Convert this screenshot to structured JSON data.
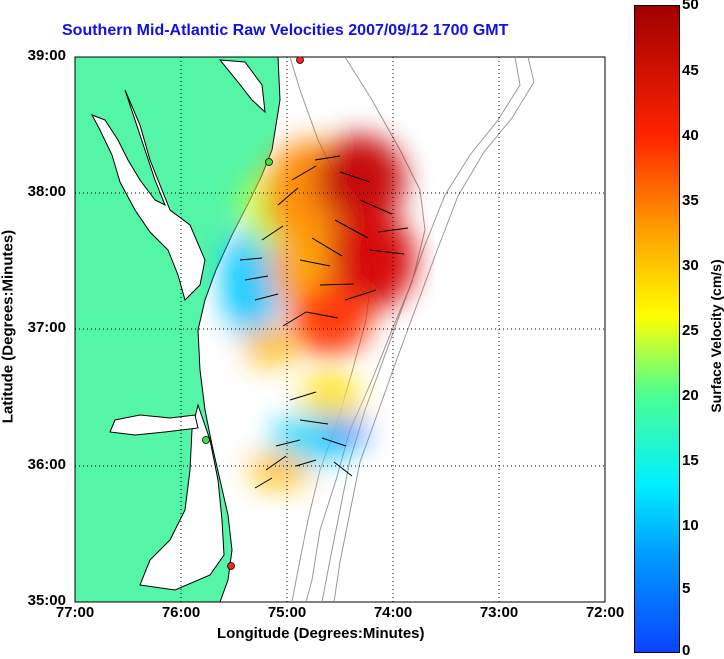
{
  "title": "Southern Mid-Atlantic Raw Velocities 2007/09/12 1700 GMT",
  "x_axis": {
    "label": "Longitude (Degrees:Minutes)",
    "ticks": [
      "77:00",
      "76:00",
      "75:00",
      "74:00",
      "73:00",
      "72:00"
    ]
  },
  "y_axis": {
    "label": "Latitude (Degrees:Minutes)",
    "ticks": [
      "39:00",
      "38:00",
      "37:00",
      "36:00",
      "35:00"
    ]
  },
  "colorbar": {
    "label": "Surface Velocity (cm/s)",
    "ticks": [
      "50",
      "45",
      "40",
      "35",
      "30",
      "25",
      "20",
      "15",
      "10",
      "5",
      "0"
    ],
    "range": [
      0,
      50
    ]
  },
  "colors": {
    "land": "#55f5a8",
    "title": "#1010e8",
    "bathymetry": "#9a9a9a",
    "grid": "#000000"
  },
  "grid": true
}
